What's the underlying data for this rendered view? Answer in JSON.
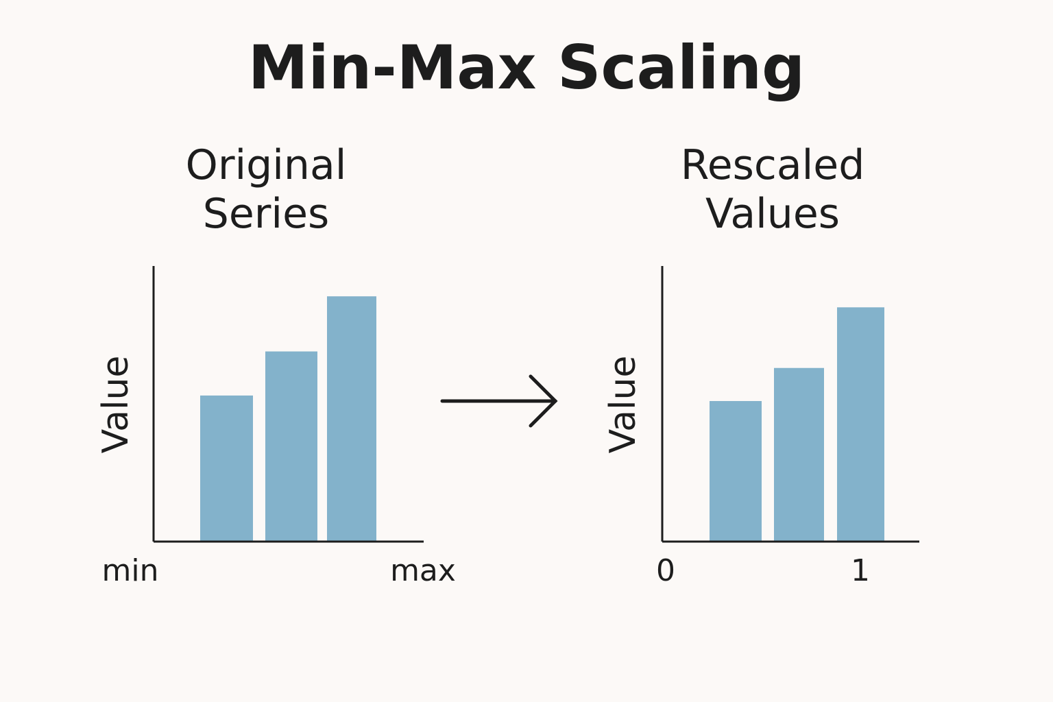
{
  "title": "Min-Max Scaling",
  "chart_data": [
    {
      "type": "bar",
      "title": "Original Series",
      "y_label": "Value",
      "categories": [
        null,
        null,
        null
      ],
      "values": [
        0.53,
        0.69,
        0.89
      ],
      "color": "#83b2cb",
      "ylim": [
        0,
        1
      ],
      "x_axis_labels": [
        "min",
        "max"
      ]
    },
    {
      "type": "bar",
      "title": "Rescaled Values",
      "y_label": "Value",
      "categories": [
        null,
        null,
        null
      ],
      "values": [
        0.51,
        0.63,
        0.85
      ],
      "color": "#83b2cb",
      "ylim": [
        0,
        1
      ],
      "x_axis_labels": [
        "0",
        "1"
      ]
    }
  ]
}
